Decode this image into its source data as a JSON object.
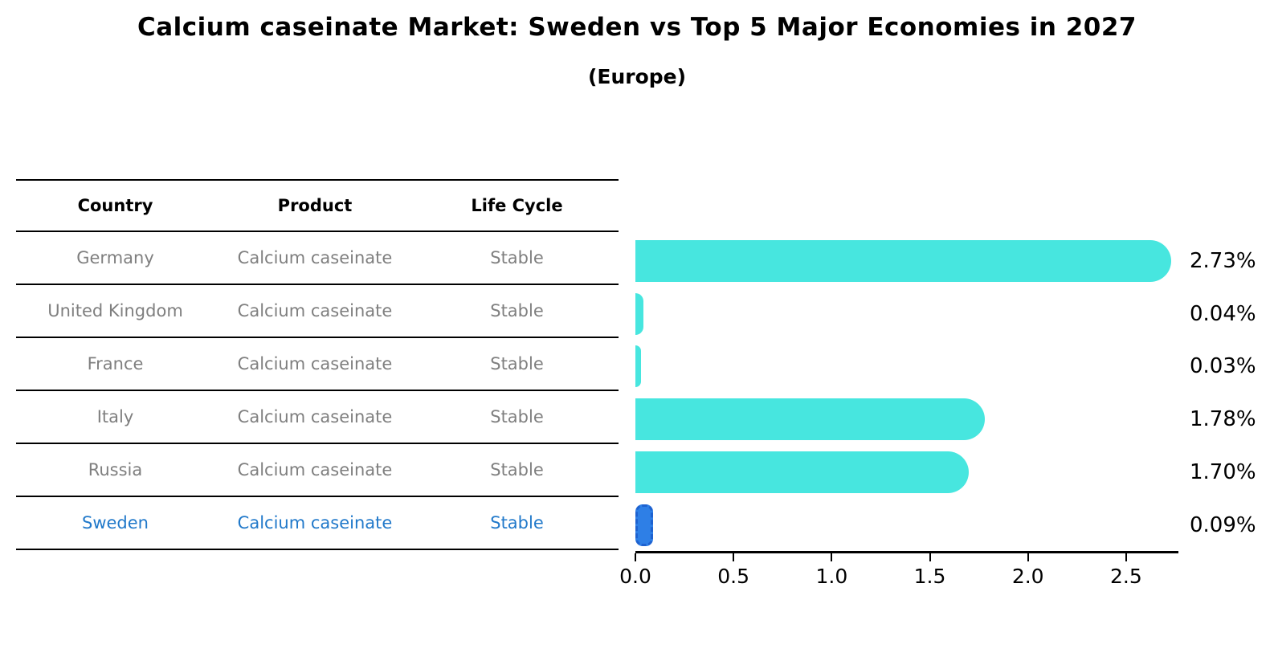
{
  "title": "Calcium caseinate Market: Sweden vs Top 5 Major Economies in 2027",
  "subtitle": "(Europe)",
  "table": {
    "headers": [
      "Country",
      "Product",
      "Life Cycle"
    ],
    "rows": [
      {
        "country": "Germany",
        "product": "Calcium caseinate",
        "life_cycle": "Stable",
        "highlight": false
      },
      {
        "country": "United Kingdom",
        "product": "Calcium caseinate",
        "life_cycle": "Stable",
        "highlight": false
      },
      {
        "country": "France",
        "product": "Calcium caseinate",
        "life_cycle": "Stable",
        "highlight": false
      },
      {
        "country": "Italy",
        "product": "Calcium caseinate",
        "life_cycle": "Stable",
        "highlight": false
      },
      {
        "country": "Russia",
        "product": "Calcium caseinate",
        "life_cycle": "Stable",
        "highlight": false
      },
      {
        "country": "Sweden",
        "product": "Calcium caseinate",
        "life_cycle": "Stable",
        "highlight": true
      }
    ]
  },
  "chart_data": {
    "type": "bar",
    "orientation": "horizontal",
    "title": "Calcium caseinate Market: Sweden vs Top 5 Major Economies in 2027",
    "subtitle": "(Europe)",
    "categories": [
      "Germany",
      "United Kingdom",
      "France",
      "Italy",
      "Russia",
      "Sweden"
    ],
    "values": [
      2.73,
      0.04,
      0.03,
      1.78,
      1.7,
      0.09
    ],
    "value_labels": [
      "2.73%",
      "0.04%",
      "0.03%",
      "1.78%",
      "1.70%",
      "0.09%"
    ],
    "xlim": [
      0,
      2.75
    ],
    "xticks": [
      0.0,
      0.5,
      1.0,
      1.5,
      2.0,
      2.5
    ],
    "xtick_labels": [
      "0.0",
      "0.5",
      "1.0",
      "1.5",
      "2.0",
      "2.5"
    ],
    "grid": false,
    "legend": false,
    "highlight_index": 5,
    "colors": {
      "bar": "#47E6DF",
      "highlight_bar_fill": "#2E7FE6",
      "highlight_bar_border": "#1E62D0",
      "table_text": "#7F7F7F",
      "highlight_text": "#2179CA",
      "axis_text": "#000000"
    }
  }
}
